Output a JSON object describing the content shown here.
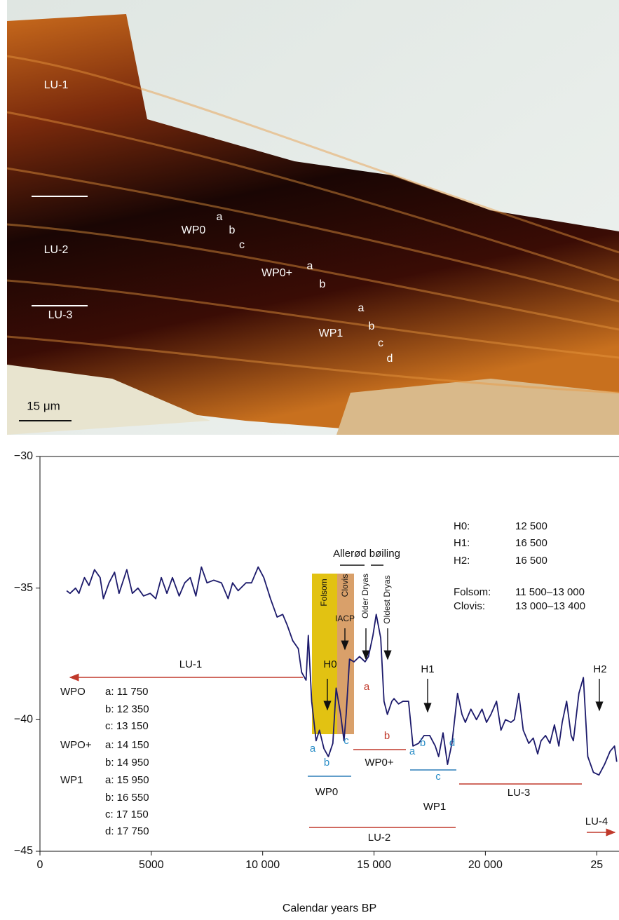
{
  "photo": {
    "labels": [
      "LU-1",
      "LU-2",
      "LU-3",
      "WP0",
      "a",
      "b",
      "c",
      "WP0+",
      "a",
      "b",
      "WP1",
      "a",
      "b",
      "c",
      "d"
    ],
    "scale_bar": "15 μm"
  },
  "chart_data": {
    "type": "line",
    "x_label": "Calendar years BP",
    "xlim": [
      0,
      26000
    ],
    "ylim": [
      -45,
      -30
    ],
    "xticks": [
      0,
      5000,
      {
        "value": 10000,
        "label": "10 000"
      },
      {
        "value": 15000,
        "label": "15 000"
      },
      {
        "value": 20000,
        "label": "20 000"
      },
      {
        "value": 25000,
        "label": "25"
      }
    ],
    "yticks": [
      {
        "value": -45,
        "label": "−45"
      },
      {
        "value": -40,
        "label": "−40"
      },
      {
        "value": -35,
        "label": "−35"
      },
      {
        "value": -30,
        "label": "−30"
      }
    ],
    "series": [
      {
        "color": "#1c1a6b",
        "x": [
          1200,
          1350,
          1600,
          1750,
          2000,
          2200,
          2450,
          2700,
          2850,
          3100,
          3350,
          3550,
          3900,
          4150,
          4400,
          4650,
          4950,
          5200,
          5450,
          5700,
          5950,
          6250,
          6500,
          6750,
          7000,
          7250,
          7500,
          7800,
          8150,
          8450,
          8650,
          8900,
          9250,
          9500,
          9800,
          10050,
          10350,
          10650,
          10900,
          11100,
          11350,
          11600,
          11750,
          11950,
          12050,
          12200,
          12400,
          12550,
          12750,
          12950,
          13150,
          13300,
          13500,
          13650,
          13750,
          13900,
          14100,
          14350,
          14600,
          14750,
          14950,
          15100,
          15300,
          15450,
          15600,
          15800,
          15900,
          16100,
          16300,
          16550,
          16750,
          17000,
          17250,
          17500,
          17750,
          17900,
          18100,
          18300,
          18500,
          18750,
          18950,
          19100,
          19350,
          19600,
          19850,
          20050,
          20250,
          20500,
          20700,
          20900,
          21150,
          21300,
          21500,
          21700,
          21950,
          22150,
          22350,
          22500,
          22700,
          22900,
          23100,
          23300,
          23450,
          23650,
          23850,
          23950,
          24200,
          24400,
          24600,
          24850,
          25100,
          25350,
          25600,
          25800,
          25900
        ],
        "values": [
          -35.1,
          -35.2,
          -35.0,
          -35.2,
          -34.6,
          -34.9,
          -34.3,
          -34.6,
          -35.4,
          -34.8,
          -34.4,
          -35.2,
          -34.3,
          -35.2,
          -35.0,
          -35.3,
          -35.2,
          -35.4,
          -34.6,
          -35.2,
          -34.6,
          -35.3,
          -34.8,
          -34.6,
          -35.3,
          -34.2,
          -34.8,
          -34.7,
          -34.8,
          -35.4,
          -34.8,
          -35.1,
          -34.8,
          -34.8,
          -34.2,
          -34.6,
          -35.4,
          -36.1,
          -36.0,
          -36.4,
          -37.0,
          -37.3,
          -38.2,
          -38.5,
          -36.8,
          -39.3,
          -40.8,
          -40.4,
          -41.1,
          -41.4,
          -40.9,
          -38.8,
          -39.8,
          -40.8,
          -39.8,
          -37.7,
          -37.8,
          -37.6,
          -37.8,
          -37.6,
          -36.8,
          -36.0,
          -36.9,
          -39.3,
          -39.8,
          -39.3,
          -39.2,
          -39.4,
          -39.3,
          -39.3,
          -41.0,
          -40.9,
          -40.6,
          -40.6,
          -41.0,
          -41.4,
          -40.5,
          -41.7,
          -40.9,
          -39.0,
          -39.8,
          -40.1,
          -39.6,
          -40.0,
          -39.6,
          -40.1,
          -39.8,
          -39.3,
          -40.4,
          -40.0,
          -40.1,
          -40.0,
          -39.0,
          -40.4,
          -40.9,
          -40.7,
          -41.3,
          -40.8,
          -40.6,
          -40.9,
          -40.2,
          -41.0,
          -40.1,
          -39.3,
          -40.6,
          -40.8,
          -39.0,
          -38.4,
          -41.4,
          -42.0,
          -42.1,
          -41.7,
          -41.2,
          -41.0,
          -41.6
        ]
      }
    ],
    "annotations": [
      "LU-1",
      "H0",
      "Allerød bøiling",
      "Folsom",
      "Clovis",
      "IACP",
      "Older Dryas",
      "Oldest Dryas",
      "a",
      "b",
      "a",
      "b",
      "c",
      "WP0",
      "WP0+",
      "a",
      "b",
      "c",
      "d",
      "WP1",
      "H1",
      "LU-3",
      "LU-2",
      "H2",
      "LU-4"
    ],
    "dates": [
      [
        "H0:",
        "12 500"
      ],
      [
        "H1:",
        "16 500"
      ],
      [
        "H2:",
        "16 500"
      ],
      [
        "Folsom:",
        "11 500–13 000"
      ],
      [
        "Clovis:",
        "13 000–13 400"
      ]
    ],
    "wp_dates": [
      [
        "WPO",
        "a: 11 750"
      ],
      [
        "",
        "b: 12 350"
      ],
      [
        "",
        "c: 13 150"
      ],
      [
        "WPO+",
        "a: 14 150"
      ],
      [
        "",
        "b: 14 950"
      ],
      [
        "WP1",
        "a: 15 950"
      ],
      [
        "",
        "b: 16 550"
      ],
      [
        "",
        "c: 17 150"
      ],
      [
        "",
        "d: 17 750"
      ]
    ]
  }
}
